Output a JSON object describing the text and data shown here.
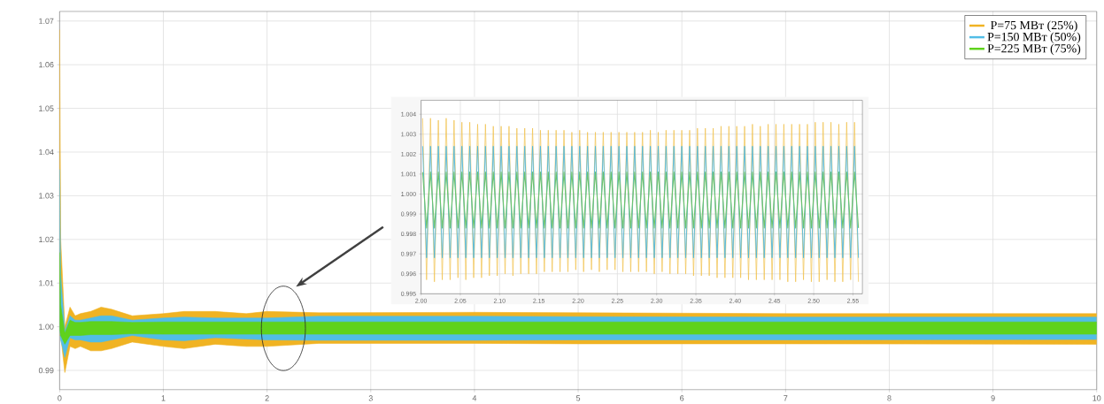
{
  "chart_data": [
    {
      "type": "line",
      "xlim": [
        0,
        10
      ],
      "ylim": [
        0.9856,
        1.0722
      ],
      "xticks": [
        0,
        1,
        2,
        3,
        4,
        5,
        6,
        7,
        8,
        9,
        10
      ],
      "yticks": [
        {
          "value": 0.99,
          "label": "0.99"
        },
        {
          "value": 1.0,
          "label": "1.00"
        },
        {
          "value": 1.01,
          "label": "1.01"
        },
        {
          "value": 1.02,
          "label": "1.02"
        },
        {
          "value": 1.03,
          "label": "1.03"
        },
        {
          "value": 1.04,
          "label": "1.04"
        },
        {
          "value": 1.05,
          "label": "1.05"
        },
        {
          "value": 1.06,
          "label": "1.06"
        },
        {
          "value": 1.07,
          "label": "1.07"
        }
      ],
      "grid": true,
      "legend": "top right",
      "series": [
        {
          "name": "P=75 МВт (25%)",
          "color": "#f0b323",
          "x": [
            0,
            0.01,
            0.05,
            0.1,
            0.15,
            0.2,
            0.3,
            0.4,
            0.5,
            0.7,
            1.0,
            1.2,
            1.5,
            1.8,
            2.0,
            2.5,
            4,
            5,
            7,
            10
          ],
          "values": [
            null,
            null,
            null,
            null,
            null,
            null,
            null,
            null,
            null,
            null,
            null,
            null,
            null,
            null,
            null,
            null,
            null,
            null,
            null,
            null
          ],
          "upper": [
            1.068,
            1.02,
            1.0,
            1.0045,
            1.0025,
            1.003,
            1.0035,
            1.0045,
            1.004,
            1.0025,
            1.003,
            1.0035,
            1.0035,
            1.003,
            1.0035,
            1.0032,
            1.0033,
            1.0032,
            1.003,
            1.003
          ],
          "lower": [
            0.998,
            0.998,
            0.9895,
            0.9955,
            0.995,
            0.9955,
            0.9945,
            0.9945,
            0.995,
            0.9965,
            0.9955,
            0.995,
            0.996,
            0.9955,
            0.9955,
            0.9962,
            0.9962,
            0.9961,
            0.9961,
            0.996
          ]
        },
        {
          "name": "P=150 МВт (50%)",
          "color": "#52bde6",
          "x": [
            0,
            0.01,
            0.05,
            0.1,
            0.15,
            0.2,
            0.3,
            0.4,
            0.5,
            0.7,
            1.0,
            1.2,
            1.5,
            2.0,
            2.5,
            4,
            5,
            7,
            10
          ],
          "values": [
            null,
            null,
            null,
            null,
            null,
            null,
            null,
            null,
            null,
            null,
            null,
            null,
            null,
            null,
            null,
            null,
            null,
            null,
            null
          ],
          "upper": [
            1.036,
            1.012,
            0.999,
            1.0025,
            1.0015,
            1.0015,
            1.002,
            1.0025,
            1.0025,
            1.0015,
            1.002,
            1.0022,
            1.002,
            1.002,
            1.0024,
            1.0024,
            1.0023,
            1.0022,
            1.0022
          ],
          "lower": [
            0.999,
            0.997,
            0.993,
            0.9975,
            0.997,
            0.997,
            0.9965,
            0.9965,
            0.997,
            0.998,
            0.997,
            0.9968,
            0.9975,
            0.997,
            0.9969,
            0.9969,
            0.997,
            0.997,
            0.9971
          ]
        },
        {
          "name": "P=225 МВт (75%)",
          "color": "#5fd21c",
          "x": [
            0,
            0.01,
            0.05,
            0.1,
            0.15,
            0.2,
            0.3,
            0.4,
            0.5,
            0.7,
            1.0,
            1.2,
            1.5,
            1.8,
            2.0,
            2.5,
            4,
            5,
            7,
            8,
            10
          ],
          "values": [
            null,
            null,
            null,
            null,
            null,
            null,
            null,
            null,
            null,
            null,
            null,
            null,
            null,
            null,
            null,
            null,
            null,
            null,
            null,
            null,
            null
          ],
          "upper": [
            1.017,
            1.005,
            0.9985,
            1.0015,
            1.001,
            1.001,
            1.0012,
            1.0012,
            1.0012,
            1.001,
            1.0011,
            1.0011,
            1.0011,
            1.0011,
            1.0011,
            1.0011,
            1.0011,
            1.0011,
            1.0011,
            1.0011,
            1.0011
          ],
          "lower": [
            0.9995,
            0.998,
            0.996,
            0.998,
            0.998,
            0.998,
            0.9982,
            0.9982,
            0.9982,
            0.9984,
            0.9983,
            0.9983,
            0.9983,
            0.9983,
            0.9983,
            0.9983,
            0.9983,
            0.9983,
            0.9983,
            0.9983,
            0.9983
          ]
        }
      ]
    },
    {
      "type": "line",
      "xlim": [
        2.0,
        2.562
      ],
      "ylim": [
        0.995,
        1.0047
      ],
      "xticks": [
        {
          "value": 2.0,
          "label": "2.00"
        },
        {
          "value": 2.05,
          "label": "2.05"
        },
        {
          "value": 2.1,
          "label": "2.10"
        },
        {
          "value": 2.15,
          "label": "2.15"
        },
        {
          "value": 2.2,
          "label": "2.20"
        },
        {
          "value": 2.25,
          "label": "2.25"
        },
        {
          "value": 2.3,
          "label": "2.30"
        },
        {
          "value": 2.35,
          "label": "2.35"
        },
        {
          "value": 2.4,
          "label": "2.40"
        },
        {
          "value": 2.45,
          "label": "2.45"
        },
        {
          "value": 2.5,
          "label": "2.50"
        },
        {
          "value": 2.55,
          "label": "2.55"
        }
      ],
      "yticks": [
        0.995,
        0.996,
        0.997,
        0.998,
        0.999,
        {
          "value": 1.0,
          "label": "1.000"
        },
        1.001,
        1.002,
        1.003,
        1.004
      ],
      "grid": true,
      "x": [
        2.002,
        2.007,
        2.012,
        2.017,
        2.022,
        2.027,
        2.032,
        2.037,
        2.042,
        2.047,
        2.052,
        2.057,
        2.062,
        2.067,
        2.072,
        2.077,
        2.082,
        2.087,
        2.092,
        2.097,
        2.102,
        2.107,
        2.112,
        2.117,
        2.122,
        2.127,
        2.132,
        2.137,
        2.142,
        2.147,
        2.152,
        2.157,
        2.162,
        2.167,
        2.172,
        2.177,
        2.182,
        2.187,
        2.192,
        2.197,
        2.202,
        2.207,
        2.212,
        2.217,
        2.222,
        2.227,
        2.232,
        2.237,
        2.242,
        2.247,
        2.252,
        2.257,
        2.262,
        2.267,
        2.272,
        2.277,
        2.282,
        2.287,
        2.292,
        2.297,
        2.302,
        2.307,
        2.312,
        2.317,
        2.322,
        2.327,
        2.332,
        2.337,
        2.342,
        2.347,
        2.352,
        2.357,
        2.362,
        2.367,
        2.372,
        2.377,
        2.382,
        2.387,
        2.392,
        2.397,
        2.402,
        2.407,
        2.412,
        2.417,
        2.422,
        2.427,
        2.432,
        2.437,
        2.442,
        2.447,
        2.452,
        2.457,
        2.462,
        2.467,
        2.472,
        2.477,
        2.482,
        2.487,
        2.492,
        2.497,
        2.502,
        2.507,
        2.512,
        2.517,
        2.522,
        2.527,
        2.532,
        2.537,
        2.542,
        2.547,
        2.552,
        2.557
      ],
      "series": [
        {
          "color": "#f0c04a",
          "values": [
            1.0038,
            0.9957,
            1.0038,
            0.9956,
            1.0037,
            0.9957,
            1.0038,
            0.9957,
            1.0037,
            0.9958,
            1.0036,
            0.9957,
            1.0036,
            0.9958,
            1.0035,
            0.9958,
            1.0035,
            0.9959,
            1.0034,
            0.9959,
            1.0034,
            0.996,
            1.0034,
            0.9959,
            1.0033,
            0.996,
            1.0033,
            0.996,
            1.0033,
            0.996,
            1.0032,
            0.9961,
            1.0032,
            0.9961,
            1.0032,
            0.9961,
            1.0032,
            0.9961,
            1.0031,
            0.9962,
            1.0032,
            0.9961,
            1.0031,
            0.9962,
            1.0031,
            0.9961,
            1.0031,
            0.9962,
            1.0031,
            0.9962,
            1.0031,
            0.9961,
            1.0031,
            0.9961,
            1.0031,
            0.9961,
            1.0031,
            0.9961,
            1.0032,
            0.996,
            1.0031,
            0.9961,
            1.0032,
            0.996,
            1.0032,
            0.996,
            1.0032,
            0.996,
            1.0032,
            0.9959,
            1.0033,
            0.9959,
            1.0033,
            0.9959,
            1.0033,
            0.9958,
            1.0034,
            0.9958,
            1.0034,
            0.9958,
            1.0034,
            0.9958,
            1.0034,
            0.9957,
            1.0035,
            0.9957,
            1.0034,
            0.9957,
            1.0035,
            0.9957,
            1.0035,
            0.9957,
            1.0035,
            0.9956,
            1.0035,
            0.9956,
            1.0035,
            0.9957,
            1.0035,
            0.9956,
            1.0036,
            0.9956,
            1.0036,
            0.9957,
            1.0036,
            0.9956,
            1.0035,
            0.9956,
            1.0036,
            0.9957,
            1.0036,
            0.9956
          ]
        },
        {
          "color": "#4fb6da",
          "values": [
            1.0024,
            0.9968,
            1.0024,
            0.9968,
            1.0024,
            0.9968,
            1.0024,
            0.9968,
            1.0024,
            0.9968,
            1.0024,
            0.9968,
            1.0024,
            0.9968,
            1.0024,
            0.9968,
            1.0024,
            0.9968,
            1.0024,
            0.9968,
            1.0024,
            0.9968,
            1.0024,
            0.9968,
            1.0024,
            0.9968,
            1.0024,
            0.9968,
            1.0024,
            0.9968,
            1.0024,
            0.9968,
            1.0024,
            0.9968,
            1.0024,
            0.9968,
            1.0024,
            0.9968,
            1.0024,
            0.9968,
            1.0024,
            0.9968,
            1.0024,
            0.9968,
            1.0024,
            0.9968,
            1.0024,
            0.9968,
            1.0024,
            0.9968,
            1.0024,
            0.9968,
            1.0024,
            0.9968,
            1.0024,
            0.9968,
            1.0024,
            0.9968,
            1.0024,
            0.9968,
            1.0024,
            0.9968,
            1.0024,
            0.9968,
            1.0024,
            0.9968,
            1.0024,
            0.9968,
            1.0024,
            0.9968,
            1.0024,
            0.9968,
            1.0024,
            0.9968,
            1.0024,
            0.9968,
            1.0024,
            0.9968,
            1.0024,
            0.9968,
            1.0024,
            0.9968,
            1.0024,
            0.9968,
            1.0024,
            0.9968,
            1.0024,
            0.9968,
            1.0024,
            0.9968,
            1.0024,
            0.9968,
            1.0024,
            0.9968,
            1.0024,
            0.9968,
            1.0024,
            0.9968,
            1.0024,
            0.9968,
            1.0024,
            0.9968,
            1.0024,
            0.9968,
            1.0024,
            0.9968,
            1.0024,
            0.9968,
            1.0024,
            0.9968,
            1.0024,
            0.9968
          ]
        },
        {
          "color": "#6cc46c",
          "values": [
            1.0011,
            0.9983,
            1.0011,
            0.9983,
            1.0011,
            0.9983,
            1.0011,
            0.9983,
            1.0011,
            0.9983,
            1.0011,
            0.9983,
            1.0011,
            0.9983,
            1.0011,
            0.9983,
            1.0011,
            0.9983,
            1.0011,
            0.9983,
            1.0011,
            0.9983,
            1.0011,
            0.9983,
            1.0011,
            0.9983,
            1.0011,
            0.9983,
            1.0011,
            0.9983,
            1.0011,
            0.9983,
            1.0011,
            0.9983,
            1.0011,
            0.9983,
            1.0011,
            0.9983,
            1.0011,
            0.9983,
            1.0011,
            0.9983,
            1.0011,
            0.9983,
            1.0011,
            0.9983,
            1.0011,
            0.9983,
            1.0011,
            0.9983,
            1.0011,
            0.9983,
            1.0011,
            0.9983,
            1.0011,
            0.9983,
            1.0011,
            0.9983,
            1.0011,
            0.9983,
            1.0011,
            0.9983,
            1.0011,
            0.9983,
            1.0011,
            0.9983,
            1.0011,
            0.9983,
            1.0011,
            0.9983,
            1.0011,
            0.9983,
            1.0011,
            0.9983,
            1.0011,
            0.9983,
            1.0011,
            0.9983,
            1.0011,
            0.9983,
            1.0011,
            0.9983,
            1.0011,
            0.9983,
            1.0011,
            0.9983,
            1.0011,
            0.9983,
            1.0011,
            0.9983,
            1.0011,
            0.9983,
            1.0011,
            0.9983,
            1.0011,
            0.9983,
            1.0011,
            0.9983,
            1.0011,
            0.9983,
            1.0011,
            0.9983,
            1.0011,
            0.9983,
            1.0011,
            0.9983,
            1.0011,
            0.9983,
            1.0011,
            0.9983,
            1.0011,
            0.9983
          ]
        }
      ]
    }
  ]
}
